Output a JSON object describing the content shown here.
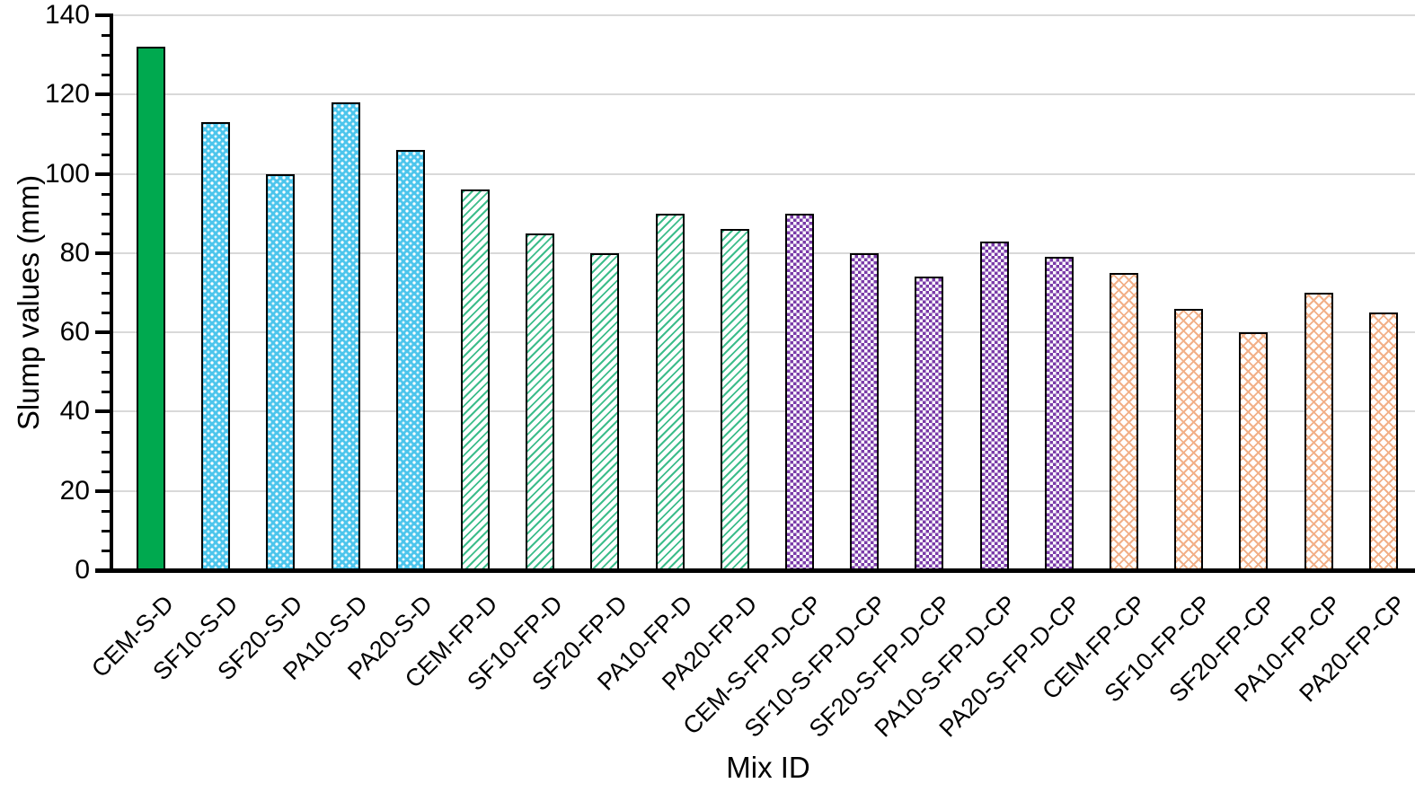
{
  "chart_data": {
    "type": "bar",
    "title": "",
    "xlabel": "Mix ID",
    "ylabel": "Slump values (mm)",
    "ylim": [
      0,
      140
    ],
    "y_major_step": 20,
    "y_minor_step": 5,
    "y_ticks": [
      0,
      20,
      40,
      60,
      80,
      100,
      120,
      140
    ],
    "grid": "horizontal-major",
    "legend": "none",
    "categories": [
      "CEM-S-D",
      "SF10-S-D",
      "SF20-S-D",
      "PA10-S-D",
      "PA20-S-D",
      "CEM-FP-D",
      "SF10-FP-D",
      "SF20-FP-D",
      "PA10-FP-D",
      "PA20-FP-D",
      "CEM-S-FP-D-CP",
      "SF10-S-FP-D-CP",
      "SF20-S-FP-D-CP",
      "PA10-S-FP-D-CP",
      "PA20-S-FP-D-CP",
      "CEM-FP-CP",
      "SF10-FP-CP",
      "SF20-FP-CP",
      "PA10-FP-CP",
      "PA20-FP-CP"
    ],
    "values": [
      132,
      113,
      100,
      118,
      106,
      96,
      85,
      80,
      90,
      86,
      90,
      80,
      74,
      83,
      79,
      75,
      66,
      60,
      70,
      65
    ],
    "patterns": [
      "solid-green",
      "blue-dots",
      "blue-dots",
      "blue-dots",
      "blue-dots",
      "green-hatch",
      "green-hatch",
      "green-hatch",
      "green-hatch",
      "green-hatch",
      "purple-check",
      "purple-check",
      "purple-check",
      "purple-check",
      "purple-check",
      "orange-cross",
      "orange-cross",
      "orange-cross",
      "orange-cross",
      "orange-cross"
    ],
    "colors": {
      "solid_green": "#00A94F",
      "dot_blue": "#4CC5EC",
      "hatch_green": "#3DBD8B",
      "check_purple": "#7A3BA8",
      "cross_orange": "#F2B088",
      "gridline": "#D9D9D9",
      "axis": "#000000",
      "bar_border": "#000000"
    }
  }
}
